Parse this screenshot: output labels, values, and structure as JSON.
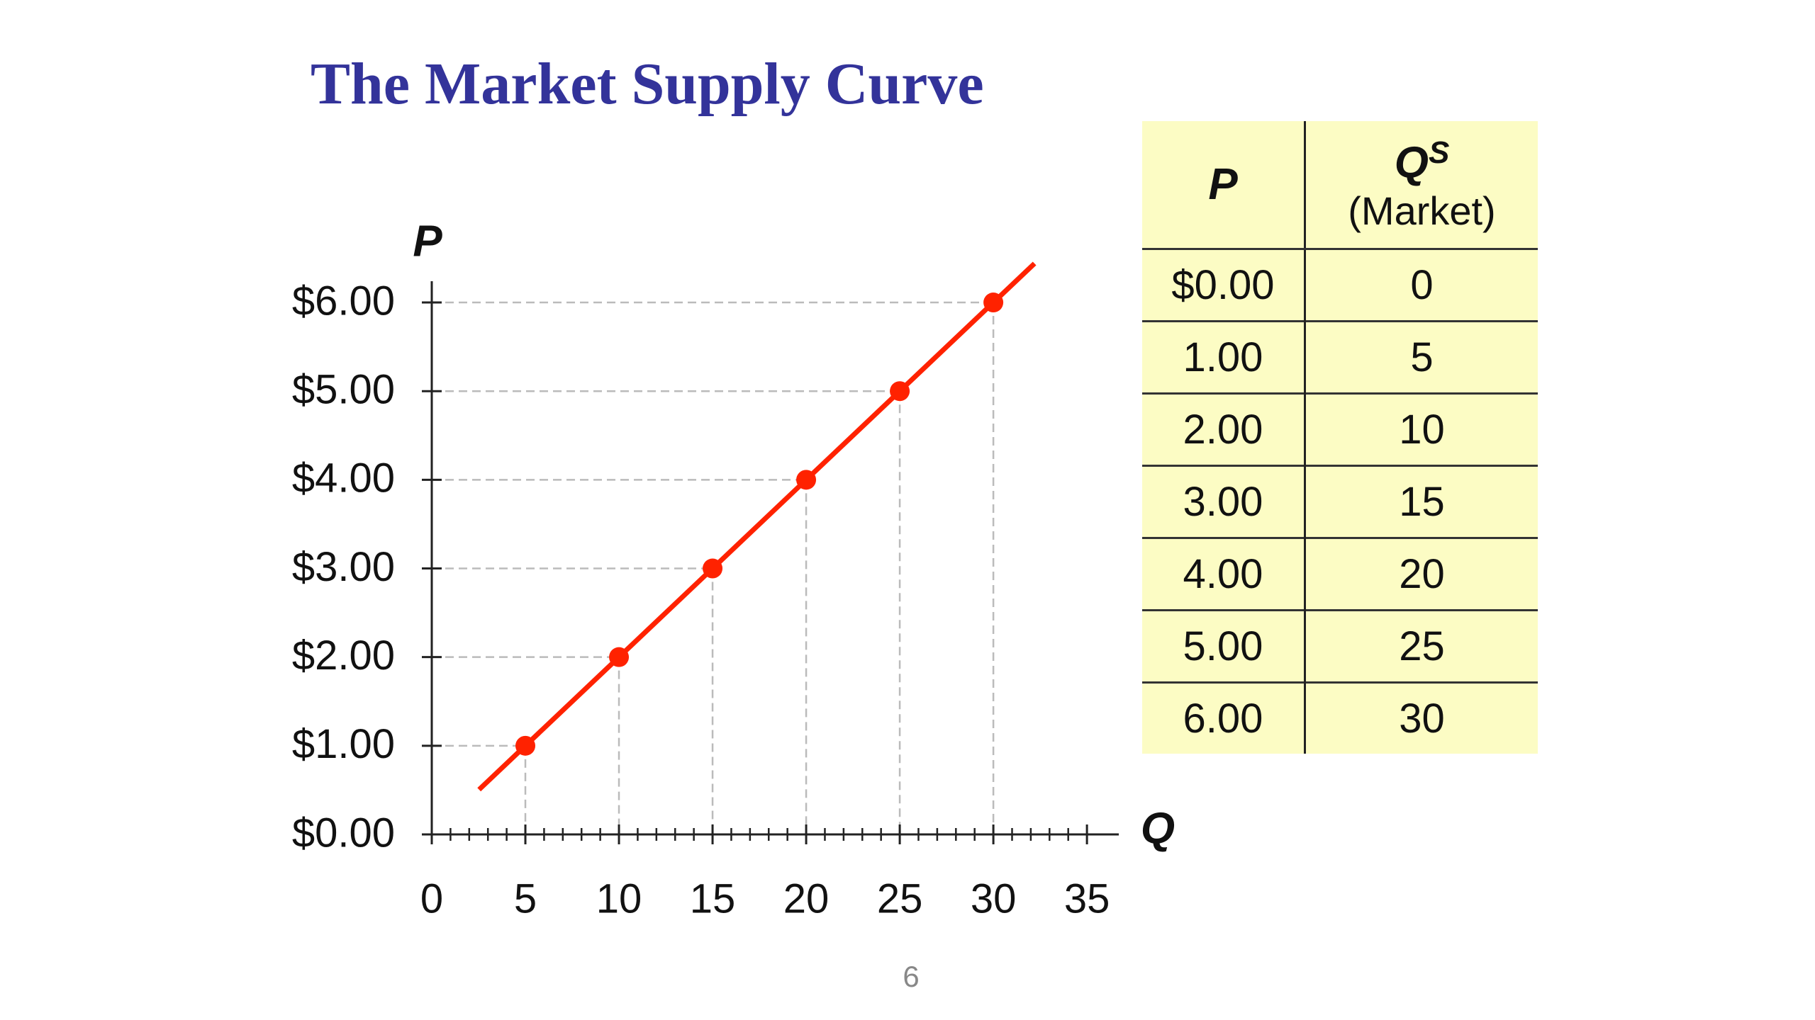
{
  "title": "The Market Supply Curve",
  "chart_data": {
    "type": "scatter",
    "x_label": "Q",
    "y_label": "P",
    "x": [
      5,
      10,
      15,
      20,
      25,
      30
    ],
    "values": [
      1,
      2,
      3,
      4,
      5,
      6
    ],
    "color": "#ff2200",
    "xlim": [
      0,
      36.7
    ],
    "ylim": [
      0,
      6.24
    ],
    "xticks": [
      0,
      5,
      10,
      15,
      20,
      25,
      30,
      35
    ],
    "yticks": [
      {
        "value": 0,
        "label": "$0.00"
      },
      {
        "value": 1,
        "label": "$1.00"
      },
      {
        "value": 2,
        "label": "$2.00"
      },
      {
        "value": 3,
        "label": "$3.00"
      },
      {
        "value": 4,
        "label": "$4.00"
      },
      {
        "value": 5,
        "label": "$5.00"
      },
      {
        "value": 6,
        "label": "$6.00"
      }
    ]
  },
  "table": {
    "header": [
      "P",
      {
        "symbol": "Q",
        "superscript": "S",
        "note": "(Market)"
      }
    ],
    "rows": [
      [
        "$0.00",
        "0"
      ],
      [
        "1.00",
        "5"
      ],
      [
        "2.00",
        "10"
      ],
      [
        "3.00",
        "15"
      ],
      [
        "4.00",
        "20"
      ],
      [
        "5.00",
        "25"
      ],
      [
        "6.00",
        "30"
      ]
    ]
  },
  "page_number": "6"
}
